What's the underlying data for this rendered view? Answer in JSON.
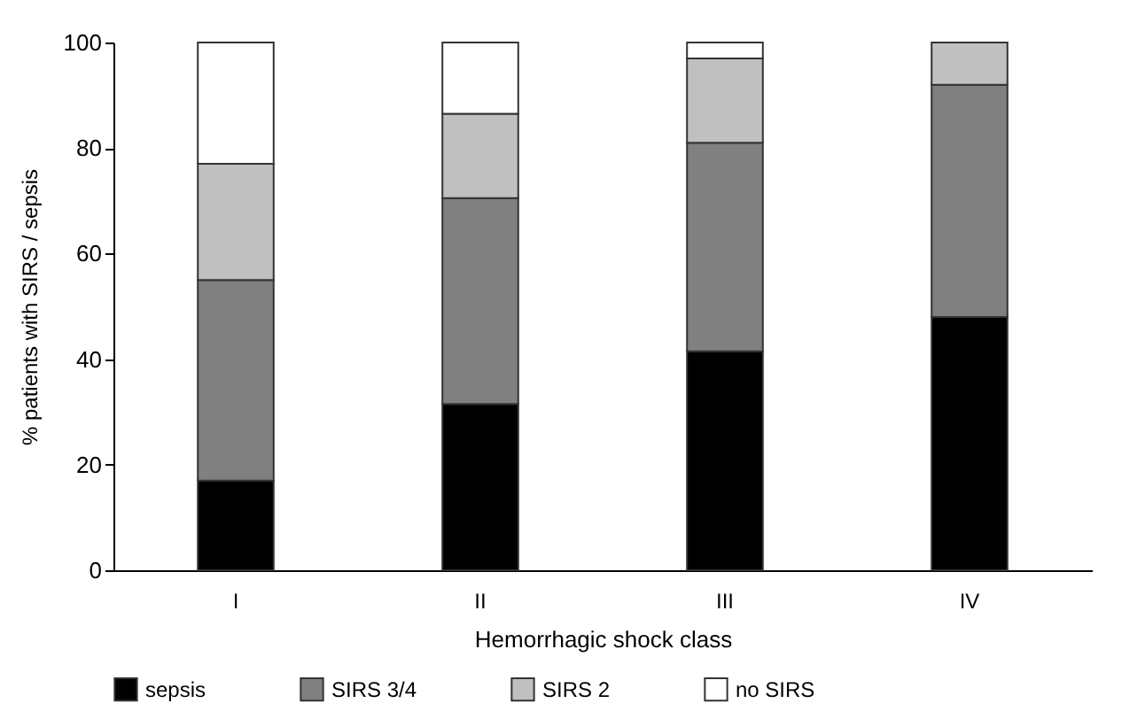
{
  "chart_data": {
    "type": "bar",
    "stacked": true,
    "xlabel": "Hemorrhagic shock class",
    "ylabel": "% patients with SIRS / sepsis",
    "categories": [
      "I",
      "II",
      "III",
      "IV"
    ],
    "series": [
      {
        "name": "sepsis",
        "color": "#000000",
        "values": [
          17,
          31.5,
          41.5,
          48
        ]
      },
      {
        "name": "SIRS 3/4",
        "color": "#808080",
        "values": [
          38,
          39,
          39.5,
          44
        ]
      },
      {
        "name": "SIRS 2",
        "color": "#c0c0c0",
        "values": [
          22,
          16,
          16,
          8
        ]
      },
      {
        "name": "no SIRS",
        "color": "#ffffff",
        "values": [
          23,
          13.5,
          3,
          null
        ]
      }
    ],
    "ylim": [
      0,
      100
    ],
    "yticks": [
      0,
      20,
      40,
      60,
      80,
      100
    ],
    "grid": false,
    "legend": "bottom"
  }
}
